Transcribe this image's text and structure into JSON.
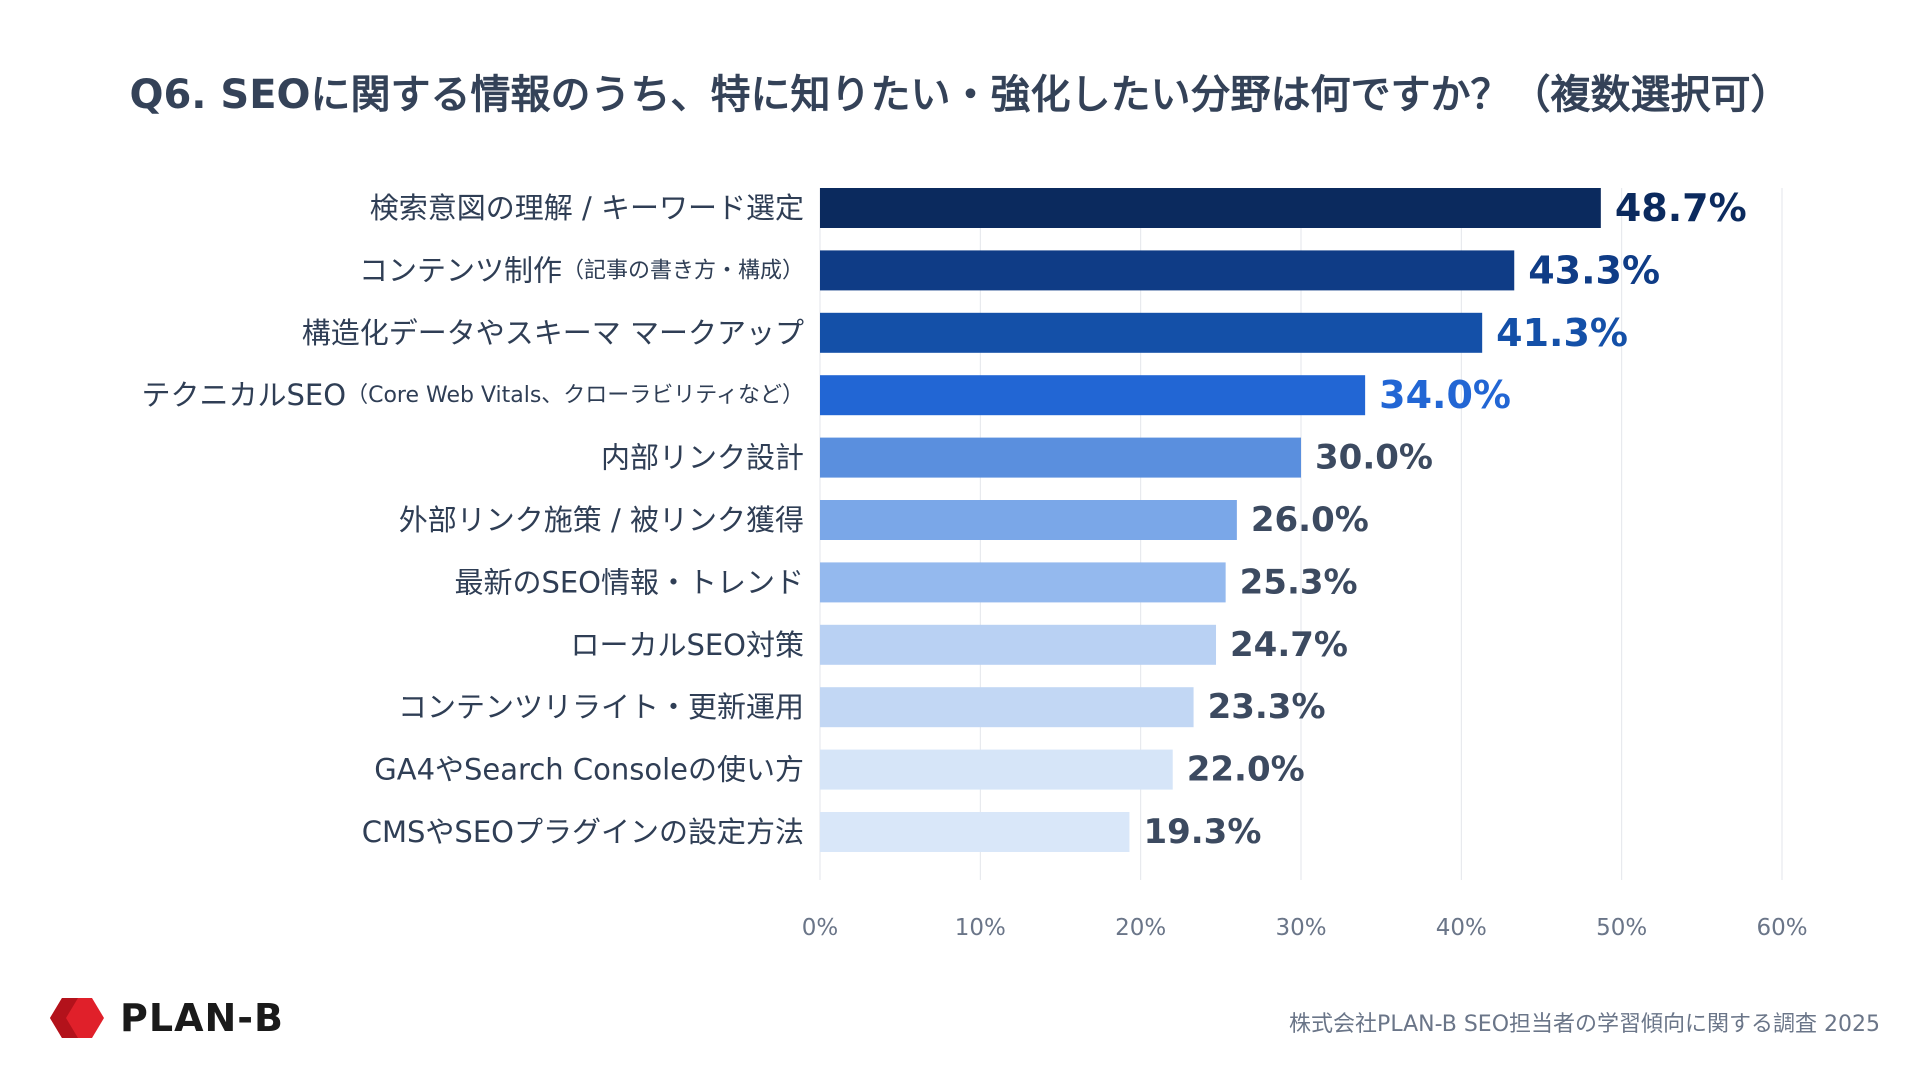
{
  "title": "Q6. SEOに関する情報のうち、特に知りたい・強化したい分野は何ですか？（複数選択可）",
  "chart_data": {
    "type": "bar",
    "orientation": "horizontal",
    "title": "Q6. SEOに関する情報のうち、特に知りたい・強化したい分野は何ですか？（複数選択可）",
    "categories": [
      {
        "main": "検索意図の理解 / キーワード選定",
        "sub": ""
      },
      {
        "main": "コンテンツ制作",
        "sub": "（記事の書き方・構成）"
      },
      {
        "main": "構造化データやスキーマ マークアップ",
        "sub": ""
      },
      {
        "main": "テクニカルSEO",
        "sub": "（Core Web Vitals、クローラビリティなど）"
      },
      {
        "main": "内部リンク設計",
        "sub": ""
      },
      {
        "main": "外部リンク施策 / 被リンク獲得",
        "sub": ""
      },
      {
        "main": "最新のSEO情報・トレンド",
        "sub": ""
      },
      {
        "main": "ローカルSEO対策",
        "sub": ""
      },
      {
        "main": "コンテンツリライト・更新運用",
        "sub": ""
      },
      {
        "main": "GA4やSearch Consoleの使い方",
        "sub": ""
      },
      {
        "main": "CMSやSEOプラグインの設定方法",
        "sub": ""
      }
    ],
    "values": [
      48.7,
      43.3,
      41.3,
      34.0,
      30.0,
      26.0,
      25.3,
      24.7,
      23.3,
      22.0,
      19.3
    ],
    "value_labels": [
      "48.7%",
      "43.3%",
      "41.3%",
      "34.0%",
      "30.0%",
      "26.0%",
      "25.3%",
      "24.7%",
      "23.3%",
      "22.0%",
      "19.3%"
    ],
    "bar_colors": [
      "#0b2a5e",
      "#0f3c86",
      "#1450a8",
      "#2266d4",
      "#5a8fde",
      "#7aa7e8",
      "#94b9ee",
      "#b9d1f3",
      "#c2d7f4",
      "#d6e5f8",
      "#d9e7f9"
    ],
    "label_colors": [
      "#0b2a5e",
      "#0f3c86",
      "#1450a8",
      "#2266d4",
      "#3c4a60",
      "#3c4a60",
      "#3c4a60",
      "#3c4a60",
      "#3c4a60",
      "#3c4a60",
      "#3c4a60"
    ],
    "xlim": [
      0,
      60
    ],
    "x_ticks": [
      "0%",
      "10%",
      "20%",
      "30%",
      "40%",
      "50%",
      "60%"
    ],
    "grid": true,
    "legend": "none"
  },
  "brand": {
    "logo_text": "PLAN-B",
    "logo_color": "#e0202a"
  },
  "source": "株式会社PLAN-B SEO担当者の学習傾向に関する調査 2025"
}
